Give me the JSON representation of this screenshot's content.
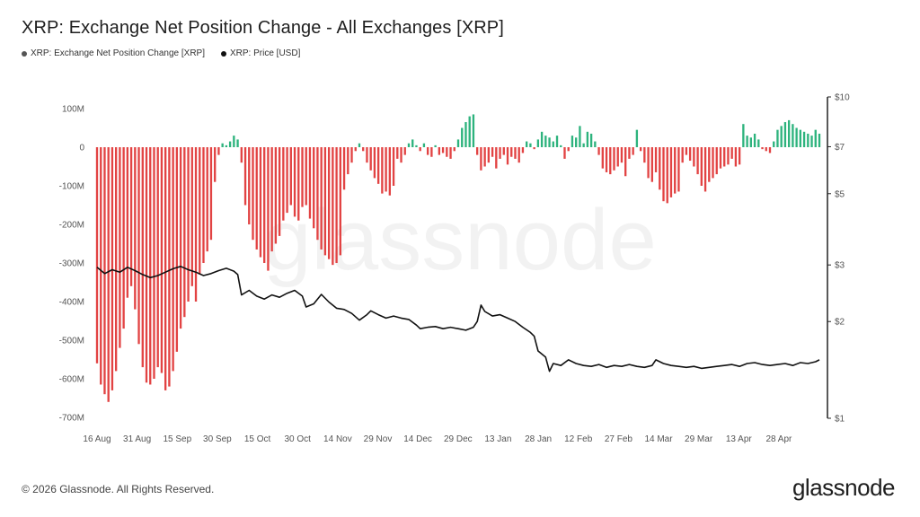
{
  "title": "XRP: Exchange Net Position Change - All Exchanges [XRP]",
  "legend": [
    {
      "label": "XRP: Exchange Net Position Change [XRP]",
      "color": "#555555"
    },
    {
      "label": "XRP: Price [USD]",
      "color": "#111111"
    }
  ],
  "watermark": "glassnode",
  "footer": "© 2026 Glassnode. All Rights Reserved.",
  "brand": "glassnode",
  "colors": {
    "positive": "#2db37d",
    "negative": "#e24343",
    "price": "#111111",
    "axis": "#222222"
  },
  "chart_data": {
    "type": "bar+line",
    "x_tick_labels": [
      "16 Aug",
      "31 Aug",
      "15 Sep",
      "30 Sep",
      "15 Oct",
      "30 Oct",
      "14 Nov",
      "29 Nov",
      "14 Dec",
      "29 Dec",
      "13 Jan",
      "28 Jan",
      "12 Feb",
      "27 Feb",
      "14 Mar",
      "29 Mar",
      "13 Apr",
      "28 Apr"
    ],
    "y_left_ticks": [
      "100M",
      "0",
      "-100M",
      "-200M",
      "-300M",
      "-400M",
      "-500M",
      "-600M",
      "-700M"
    ],
    "y_left_range": [
      -700000000,
      100000000
    ],
    "y_right_ticks": [
      "$10",
      "$7",
      "$5",
      "$3",
      "$2",
      "$1"
    ],
    "y_right_scale": "log",
    "y_right_range": [
      1,
      10
    ],
    "series": [
      {
        "name": "XRP: Exchange Net Position Change [XRP]",
        "type": "bar",
        "unit": "M XRP",
        "points": [
          [
            0,
            -560
          ],
          [
            2,
            -615
          ],
          [
            4,
            -640
          ],
          [
            6,
            -660
          ],
          [
            8,
            -630
          ],
          [
            10,
            -580
          ],
          [
            12,
            -520
          ],
          [
            14,
            -470
          ],
          [
            16,
            -390
          ],
          [
            18,
            -360
          ],
          [
            20,
            -420
          ],
          [
            22,
            -510
          ],
          [
            24,
            -570
          ],
          [
            26,
            -610
          ],
          [
            28,
            -615
          ],
          [
            30,
            -600
          ],
          [
            32,
            -570
          ],
          [
            34,
            -585
          ],
          [
            36,
            -630
          ],
          [
            38,
            -620
          ],
          [
            40,
            -580
          ],
          [
            42,
            -530
          ],
          [
            44,
            -470
          ],
          [
            46,
            -440
          ],
          [
            48,
            -400
          ],
          [
            50,
            -360
          ],
          [
            52,
            -400
          ],
          [
            54,
            -330
          ],
          [
            56,
            -300
          ],
          [
            58,
            -270
          ],
          [
            60,
            -240
          ],
          [
            62,
            -90
          ],
          [
            64,
            -20
          ],
          [
            66,
            10
          ],
          [
            68,
            5
          ],
          [
            70,
            15
          ],
          [
            72,
            30
          ],
          [
            74,
            20
          ],
          [
            76,
            -40
          ],
          [
            78,
            -150
          ],
          [
            80,
            -200
          ],
          [
            82,
            -240
          ],
          [
            84,
            -265
          ],
          [
            86,
            -285
          ],
          [
            88,
            -300
          ],
          [
            90,
            -320
          ],
          [
            92,
            -270
          ],
          [
            94,
            -250
          ],
          [
            96,
            -230
          ],
          [
            98,
            -190
          ],
          [
            100,
            -170
          ],
          [
            102,
            -150
          ],
          [
            104,
            -180
          ],
          [
            106,
            -190
          ],
          [
            108,
            -155
          ],
          [
            110,
            -150
          ],
          [
            112,
            -185
          ],
          [
            114,
            -210
          ],
          [
            116,
            -240
          ],
          [
            118,
            -265
          ],
          [
            120,
            -280
          ],
          [
            122,
            -290
          ],
          [
            124,
            -305
          ],
          [
            126,
            -300
          ],
          [
            128,
            -280
          ],
          [
            130,
            -110
          ],
          [
            132,
            -70
          ],
          [
            134,
            -40
          ],
          [
            136,
            -10
          ],
          [
            138,
            10
          ],
          [
            140,
            -10
          ],
          [
            142,
            -40
          ],
          [
            144,
            -60
          ],
          [
            146,
            -80
          ],
          [
            148,
            -95
          ],
          [
            150,
            -120
          ],
          [
            152,
            -115
          ],
          [
            154,
            -125
          ],
          [
            156,
            -100
          ],
          [
            158,
            -30
          ],
          [
            160,
            -40
          ],
          [
            162,
            -20
          ],
          [
            164,
            10
          ],
          [
            166,
            20
          ],
          [
            168,
            5
          ],
          [
            170,
            -10
          ],
          [
            172,
            10
          ],
          [
            174,
            -20
          ],
          [
            176,
            -25
          ],
          [
            178,
            5
          ],
          [
            180,
            -20
          ],
          [
            182,
            -15
          ],
          [
            184,
            -25
          ],
          [
            186,
            -30
          ],
          [
            188,
            -10
          ],
          [
            190,
            20
          ],
          [
            192,
            50
          ],
          [
            194,
            65
          ],
          [
            196,
            80
          ],
          [
            198,
            85
          ],
          [
            200,
            -20
          ],
          [
            202,
            -60
          ],
          [
            204,
            -50
          ],
          [
            206,
            -40
          ],
          [
            208,
            -25
          ],
          [
            210,
            -55
          ],
          [
            212,
            -30
          ],
          [
            214,
            -20
          ],
          [
            216,
            -45
          ],
          [
            218,
            -25
          ],
          [
            220,
            -30
          ],
          [
            222,
            -40
          ],
          [
            224,
            -15
          ],
          [
            226,
            15
          ],
          [
            228,
            10
          ],
          [
            230,
            -5
          ],
          [
            232,
            20
          ],
          [
            234,
            40
          ],
          [
            236,
            30
          ],
          [
            238,
            25
          ],
          [
            240,
            15
          ],
          [
            242,
            30
          ],
          [
            244,
            5
          ],
          [
            246,
            -30
          ],
          [
            248,
            -10
          ],
          [
            250,
            30
          ],
          [
            252,
            25
          ],
          [
            254,
            55
          ],
          [
            256,
            10
          ],
          [
            258,
            40
          ],
          [
            260,
            35
          ],
          [
            262,
            15
          ],
          [
            264,
            -20
          ],
          [
            266,
            -55
          ],
          [
            268,
            -65
          ],
          [
            270,
            -70
          ],
          [
            272,
            -60
          ],
          [
            274,
            -50
          ],
          [
            276,
            -40
          ],
          [
            278,
            -75
          ],
          [
            280,
            -30
          ],
          [
            282,
            -20
          ],
          [
            284,
            45
          ],
          [
            286,
            -10
          ],
          [
            288,
            -40
          ],
          [
            290,
            -80
          ],
          [
            292,
            -90
          ],
          [
            294,
            -65
          ],
          [
            296,
            -110
          ],
          [
            298,
            -140
          ],
          [
            300,
            -145
          ],
          [
            302,
            -130
          ],
          [
            304,
            -120
          ],
          [
            306,
            -115
          ],
          [
            308,
            -40
          ],
          [
            310,
            -20
          ],
          [
            312,
            -35
          ],
          [
            314,
            -50
          ],
          [
            316,
            -70
          ],
          [
            318,
            -100
          ],
          [
            320,
            -115
          ],
          [
            322,
            -90
          ],
          [
            324,
            -80
          ],
          [
            326,
            -70
          ],
          [
            328,
            -55
          ],
          [
            330,
            -50
          ],
          [
            332,
            -45
          ],
          [
            334,
            -30
          ],
          [
            336,
            -50
          ],
          [
            338,
            -45
          ],
          [
            340,
            60
          ],
          [
            342,
            30
          ],
          [
            344,
            25
          ],
          [
            346,
            35
          ],
          [
            348,
            20
          ],
          [
            350,
            -5
          ],
          [
            352,
            -10
          ],
          [
            354,
            -15
          ],
          [
            356,
            15
          ],
          [
            358,
            45
          ],
          [
            360,
            55
          ],
          [
            362,
            65
          ],
          [
            364,
            70
          ],
          [
            366,
            60
          ],
          [
            368,
            50
          ],
          [
            370,
            45
          ],
          [
            372,
            40
          ],
          [
            374,
            35
          ],
          [
            376,
            30
          ],
          [
            378,
            45
          ],
          [
            380,
            35
          ]
        ]
      },
      {
        "name": "XRP: Price [USD]",
        "type": "line",
        "unit": "USD",
        "points": [
          [
            0,
            2.95
          ],
          [
            4,
            2.82
          ],
          [
            8,
            2.9
          ],
          [
            12,
            2.85
          ],
          [
            16,
            2.95
          ],
          [
            20,
            2.88
          ],
          [
            24,
            2.8
          ],
          [
            28,
            2.74
          ],
          [
            32,
            2.78
          ],
          [
            36,
            2.85
          ],
          [
            40,
            2.92
          ],
          [
            44,
            2.97
          ],
          [
            48,
            2.9
          ],
          [
            52,
            2.85
          ],
          [
            56,
            2.78
          ],
          [
            60,
            2.82
          ],
          [
            64,
            2.88
          ],
          [
            68,
            2.93
          ],
          [
            72,
            2.87
          ],
          [
            74,
            2.8
          ],
          [
            76,
            2.42
          ],
          [
            80,
            2.5
          ],
          [
            84,
            2.4
          ],
          [
            88,
            2.35
          ],
          [
            92,
            2.42
          ],
          [
            96,
            2.38
          ],
          [
            100,
            2.45
          ],
          [
            104,
            2.5
          ],
          [
            108,
            2.4
          ],
          [
            110,
            2.22
          ],
          [
            114,
            2.27
          ],
          [
            118,
            2.43
          ],
          [
            122,
            2.3
          ],
          [
            126,
            2.2
          ],
          [
            130,
            2.18
          ],
          [
            134,
            2.12
          ],
          [
            138,
            2.02
          ],
          [
            142,
            2.1
          ],
          [
            144,
            2.16
          ],
          [
            148,
            2.1
          ],
          [
            152,
            2.05
          ],
          [
            156,
            2.08
          ],
          [
            160,
            2.05
          ],
          [
            164,
            2.03
          ],
          [
            168,
            1.95
          ],
          [
            170,
            1.9
          ],
          [
            174,
            1.92
          ],
          [
            178,
            1.93
          ],
          [
            182,
            1.9
          ],
          [
            186,
            1.92
          ],
          [
            190,
            1.9
          ],
          [
            194,
            1.88
          ],
          [
            198,
            1.92
          ],
          [
            200,
            2.0
          ],
          [
            202,
            2.25
          ],
          [
            204,
            2.15
          ],
          [
            208,
            2.08
          ],
          [
            212,
            2.1
          ],
          [
            216,
            2.05
          ],
          [
            220,
            2.0
          ],
          [
            224,
            1.92
          ],
          [
            228,
            1.85
          ],
          [
            230,
            1.8
          ],
          [
            232,
            1.62
          ],
          [
            236,
            1.55
          ],
          [
            238,
            1.4
          ],
          [
            240,
            1.48
          ],
          [
            244,
            1.46
          ],
          [
            248,
            1.52
          ],
          [
            252,
            1.48
          ],
          [
            256,
            1.46
          ],
          [
            260,
            1.45
          ],
          [
            264,
            1.47
          ],
          [
            268,
            1.44
          ],
          [
            272,
            1.46
          ],
          [
            276,
            1.45
          ],
          [
            280,
            1.47
          ],
          [
            284,
            1.45
          ],
          [
            288,
            1.44
          ],
          [
            292,
            1.46
          ],
          [
            294,
            1.52
          ],
          [
            298,
            1.48
          ],
          [
            302,
            1.46
          ],
          [
            306,
            1.45
          ],
          [
            310,
            1.44
          ],
          [
            314,
            1.45
          ],
          [
            318,
            1.43
          ],
          [
            322,
            1.44
          ],
          [
            326,
            1.45
          ],
          [
            330,
            1.46
          ],
          [
            334,
            1.47
          ],
          [
            338,
            1.45
          ],
          [
            342,
            1.48
          ],
          [
            346,
            1.49
          ],
          [
            350,
            1.47
          ],
          [
            354,
            1.46
          ],
          [
            358,
            1.47
          ],
          [
            362,
            1.48
          ],
          [
            366,
            1.46
          ],
          [
            370,
            1.49
          ],
          [
            374,
            1.48
          ],
          [
            378,
            1.5
          ],
          [
            380,
            1.52
          ]
        ]
      }
    ],
    "grid": false,
    "legend_position": "top-left"
  }
}
